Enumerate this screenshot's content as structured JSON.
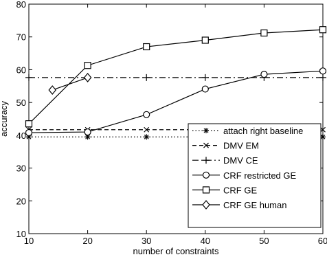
{
  "chart_data": {
    "type": "line",
    "title": "",
    "xlabel": "number of constraints",
    "ylabel": "accuracy",
    "xlim": [
      10,
      60
    ],
    "ylim": [
      10,
      80
    ],
    "xticks": [
      10,
      20,
      30,
      40,
      50,
      60
    ],
    "yticks": [
      10,
      20,
      30,
      40,
      50,
      60,
      70,
      80
    ],
    "grid": false,
    "legend_position": "bottom-right",
    "series": [
      {
        "name": "attach right baseline",
        "marker": "asterisk",
        "dash": "dotted",
        "x": [
          10,
          20,
          30,
          40,
          50,
          60
        ],
        "y": [
          39.5,
          39.5,
          39.5,
          39.5,
          39.5,
          39.5
        ]
      },
      {
        "name": "DMV EM",
        "marker": "x",
        "dash": "dashed",
        "x": [
          10,
          20,
          30,
          40,
          50,
          60
        ],
        "y": [
          41.7,
          41.7,
          41.7,
          41.7,
          41.7,
          41.7
        ]
      },
      {
        "name": "DMV CE",
        "marker": "plus",
        "dash": "dashdot",
        "x": [
          10,
          20,
          30,
          40,
          50,
          60
        ],
        "y": [
          57.6,
          57.6,
          57.6,
          57.6,
          57.6,
          57.6
        ]
      },
      {
        "name": "CRF restricted GE",
        "marker": "circle",
        "dash": "solid",
        "x": [
          10,
          20,
          30,
          40,
          50,
          60
        ],
        "y": [
          40.8,
          41.0,
          46.3,
          54.1,
          58.6,
          59.6
        ]
      },
      {
        "name": "CRF GE",
        "marker": "square",
        "dash": "solid",
        "x": [
          10,
          20,
          30,
          40,
          50,
          60
        ],
        "y": [
          43.5,
          61.3,
          67.0,
          69.0,
          71.2,
          72.2
        ]
      },
      {
        "name": "CRF GE human",
        "marker": "diamond",
        "dash": "solid",
        "x": [
          14,
          20
        ],
        "y": [
          53.8,
          57.6
        ]
      }
    ]
  }
}
